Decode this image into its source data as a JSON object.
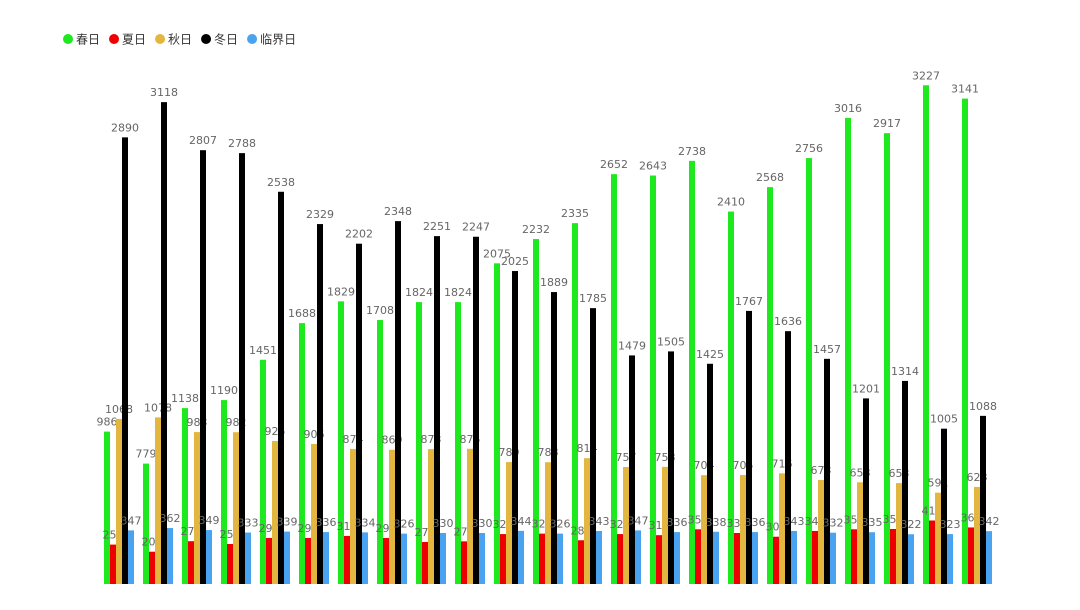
{
  "chart_data": {
    "type": "bar",
    "categories": [
      null,
      null,
      null,
      null,
      null,
      null,
      null,
      null,
      null,
      null,
      null,
      null,
      null,
      null,
      null,
      null,
      null,
      null,
      null,
      null,
      null,
      null,
      null
    ],
    "series": [
      {
        "name": "春日",
        "color": "#1ee81e",
        "values": [
          986,
          779,
          1138,
          1190,
          1451,
          1688,
          1829,
          1708,
          1824,
          1824,
          2075,
          2232,
          2335,
          2652,
          2643,
          2738,
          2410,
          2568,
          2756,
          3016,
          2917,
          3227,
          3141
        ]
      },
      {
        "name": "夏日",
        "color": "#ee0000",
        "values": [
          255,
          209,
          277,
          259,
          298,
          298,
          311,
          298,
          272,
          276,
          323,
          326,
          283,
          323,
          316,
          354,
          330,
          306,
          343,
          354,
          356,
          411,
          366
        ]
      },
      {
        "name": "秋日",
        "color": "#e3b63f",
        "values": [
          1068,
          1078,
          983,
          982,
          925,
          906,
          874,
          869,
          873,
          875,
          789,
          788,
          814,
          757,
          758,
          704,
          705,
          716,
          673,
          658,
          653,
          591,
          628
        ]
      },
      {
        "name": "冬日",
        "color": "#000000",
        "values": [
          2890,
          3118,
          2807,
          2788,
          2538,
          2329,
          2202,
          2348,
          2251,
          2247,
          2025,
          1889,
          1785,
          1479,
          1505,
          1425,
          1767,
          1636,
          1457,
          1201,
          1314,
          1005,
          1088
        ]
      },
      {
        "name": "临界日",
        "color": "#4aa3f0",
        "values": [
          347,
          362,
          349,
          333,
          339,
          336,
          334,
          326,
          330,
          330,
          344,
          326,
          343,
          347,
          336,
          338,
          336,
          343,
          332,
          335,
          322,
          323,
          342
        ]
      }
    ],
    "ylim": [
      0,
      3300
    ],
    "legend": "top-left"
  }
}
